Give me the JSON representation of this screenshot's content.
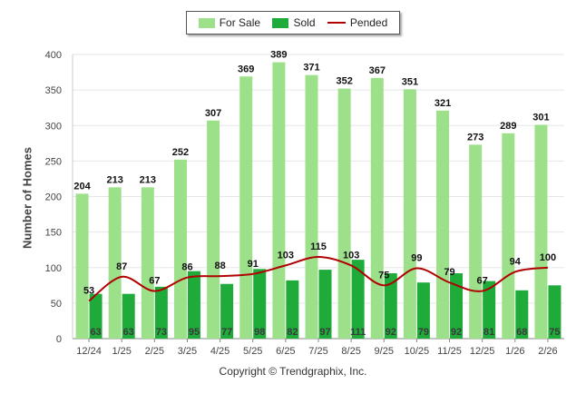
{
  "chart_data": {
    "type": "bar",
    "title": "",
    "xlabel": "",
    "ylabel": "Number of Homes",
    "ylim": [
      0,
      400
    ],
    "yticks": [
      0,
      50,
      100,
      150,
      200,
      250,
      300,
      350,
      400
    ],
    "grid": true,
    "legend_position": "top-center",
    "categories": [
      "12/24",
      "1/25",
      "2/25",
      "3/25",
      "4/25",
      "5/25",
      "6/25",
      "7/25",
      "8/25",
      "9/25",
      "10/25",
      "11/25",
      "12/25",
      "1/26",
      "2/26"
    ],
    "series": [
      {
        "name": "For Sale",
        "kind": "bar",
        "color": "#9de08a",
        "values": [
          204,
          213,
          213,
          252,
          307,
          369,
          389,
          371,
          352,
          367,
          351,
          321,
          273,
          289,
          301
        ]
      },
      {
        "name": "Sold",
        "kind": "bar",
        "color": "#1fab3a",
        "values": [
          63,
          63,
          73,
          95,
          77,
          98,
          82,
          97,
          111,
          92,
          79,
          92,
          81,
          68,
          75
        ]
      },
      {
        "name": "Pended",
        "kind": "line",
        "color": "#b00000",
        "values": [
          53,
          87,
          67,
          86,
          88,
          91,
          103,
          115,
          103,
          75,
          99,
          79,
          67,
          94,
          100
        ]
      }
    ]
  },
  "legend": {
    "for_sale": "For Sale",
    "sold": "Sold",
    "pended": "Pended"
  },
  "footer": {
    "copyright": "Copyright © Trendgraphix, Inc."
  }
}
